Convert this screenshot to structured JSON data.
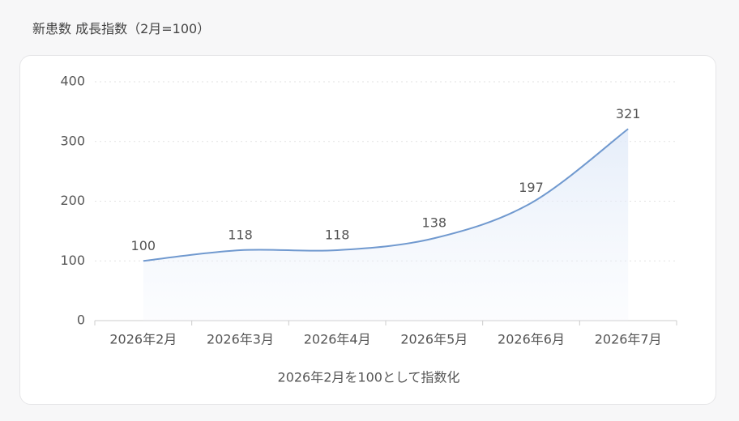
{
  "chart_data": {
    "type": "line",
    "title": "新患数 成長指数（2月=100）",
    "x_label": "2026年2月を100として指数化",
    "categories": [
      "2026年2月",
      "2026年3月",
      "2026年4月",
      "2026年5月",
      "2026年6月",
      "2026年7月"
    ],
    "values": [
      100,
      118,
      118,
      138,
      197,
      321
    ],
    "color": "#7099cf",
    "area": true,
    "ylim": [
      0,
      400
    ],
    "yticks": [
      0,
      100,
      200,
      300,
      400
    ],
    "grid": true
  }
}
